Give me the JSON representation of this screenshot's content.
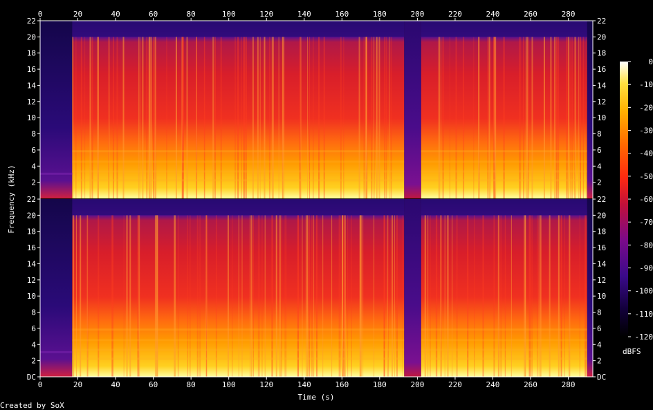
{
  "footer": {
    "credit": "Created by SoX"
  },
  "chart_data": {
    "type": "heatmap",
    "title": "",
    "xlabel": "Time (s)",
    "ylabel": "Frequency (kHz)",
    "colorbar_label": "dBFS",
    "xlim": [
      0,
      293
    ],
    "ylim_khz": [
      0,
      22
    ],
    "x_ticks": [
      "0",
      "20",
      "40",
      "60",
      "80",
      "100",
      "120",
      "140",
      "160",
      "180",
      "200",
      "220",
      "240",
      "260",
      "280"
    ],
    "y_ticks_upper": [
      "22",
      "20",
      "18",
      "16",
      "14",
      "12",
      "10",
      "8",
      "6",
      "4",
      "2"
    ],
    "y_ticks_lower": [
      "22",
      "20",
      "18",
      "16",
      "14",
      "12",
      "10",
      "8",
      "6",
      "4",
      "2",
      "DC"
    ],
    "y_tick_values_upper": [
      22,
      20,
      18,
      16,
      14,
      12,
      10,
      8,
      6,
      4,
      2
    ],
    "y_tick_values_lower": [
      22,
      20,
      18,
      16,
      14,
      12,
      10,
      8,
      6,
      4,
      2,
      0
    ],
    "colorbar_ticks": [
      "0",
      "-10",
      "-20",
      "-30",
      "-40",
      "-50",
      "-60",
      "-70",
      "-80",
      "-90",
      "-100",
      "-110",
      "-120"
    ],
    "colorbar_range_dbfs": [
      -120,
      0
    ],
    "channels": [
      {
        "name": "",
        "segments": [
          {
            "t_start": 0,
            "t_end": 17,
            "level_dbfs": -100,
            "bandwidth_khz": 20
          },
          {
            "t_start": 17,
            "t_end": 193,
            "level_dbfs": -55,
            "bandwidth_khz": 20
          },
          {
            "t_start": 193,
            "t_end": 202,
            "level_dbfs": -85,
            "bandwidth_khz": 20
          },
          {
            "t_start": 202,
            "t_end": 290,
            "level_dbfs": -58,
            "bandwidth_khz": 20
          },
          {
            "t_start": 290,
            "t_end": 293,
            "level_dbfs": -100,
            "bandwidth_khz": 20
          }
        ]
      },
      {
        "name": "",
        "segments": [
          {
            "t_start": 0,
            "t_end": 17,
            "level_dbfs": -100,
            "bandwidth_khz": 20
          },
          {
            "t_start": 17,
            "t_end": 193,
            "level_dbfs": -55,
            "bandwidth_khz": 20
          },
          {
            "t_start": 193,
            "t_end": 202,
            "level_dbfs": -85,
            "bandwidth_khz": 20
          },
          {
            "t_start": 202,
            "t_end": 290,
            "level_dbfs": -58,
            "bandwidth_khz": 20
          },
          {
            "t_start": 290,
            "t_end": 293,
            "level_dbfs": -100,
            "bandwidth_khz": 20
          }
        ]
      }
    ],
    "colors": {
      "colormap": [
        "#000000",
        "#12003a",
        "#3a0a8a",
        "#7a0a8a",
        "#c0103a",
        "#ff2a10",
        "#ff6a00",
        "#ffb000",
        "#ffe040",
        "#ffffff"
      ],
      "background": "#000000",
      "text": "#ffffff"
    }
  }
}
